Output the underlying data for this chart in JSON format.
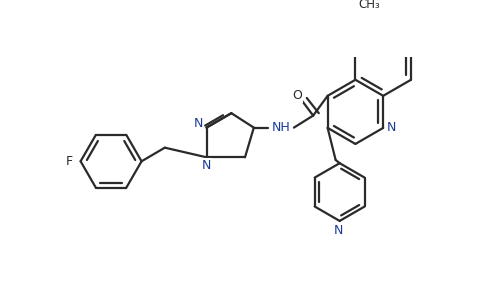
{
  "background_color": "#ffffff",
  "bond_color": "#2a2a2a",
  "N_color": "#1a3a9a",
  "lw": 1.6,
  "figsize": [
    4.9,
    2.88
  ],
  "dpi": 100,
  "xlim": [
    0,
    490
  ],
  "ylim": [
    0,
    288
  ]
}
